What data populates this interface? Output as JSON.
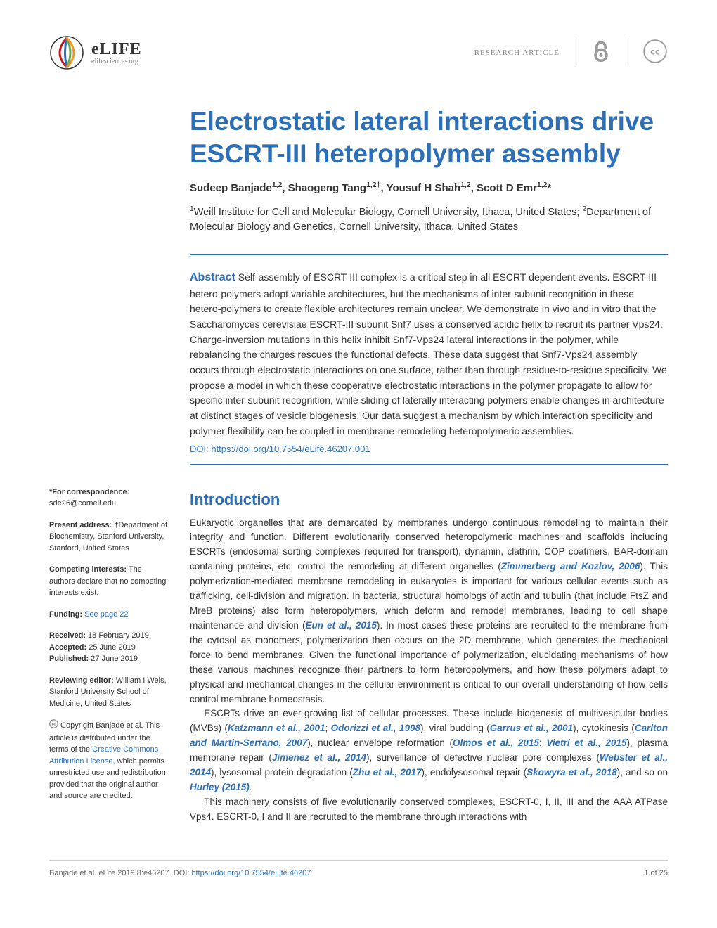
{
  "header": {
    "logo_name": "eLIFE",
    "logo_url": "elifesciences.org",
    "article_type": "RESEARCH ARTICLE"
  },
  "title": "Electrostatic lateral interactions drive ESCRT-III heteropolymer assembly",
  "authors_html": "Sudeep Banjade<sup>1,2</sup>, Shaogeng Tang<sup>1,2†</sup>, Yousuf H Shah<sup>1,2</sup>, Scott D Emr<sup>1,2</sup>*",
  "affiliations_html": "<sup>1</sup>Weill Institute for Cell and Molecular Biology, Cornell University, Ithaca, United States; <sup>2</sup>Department of Molecular Biology and Genetics, Cornell University, Ithaca, United States",
  "abstract": {
    "label": "Abstract",
    "text": " Self-assembly of ESCRT-III complex is a critical step in all ESCRT-dependent events. ESCRT-III hetero-polymers adopt variable architectures, but the mechanisms of inter-subunit recognition in these hetero-polymers to create flexible architectures remain unclear. We demonstrate in vivo and in vitro that the Saccharomyces cerevisiae ESCRT-III subunit Snf7 uses a conserved acidic helix to recruit its partner Vps24. Charge-inversion mutations in this helix inhibit Snf7-Vps24 lateral interactions in the polymer, while rebalancing the charges rescues the functional defects. These data suggest that Snf7-Vps24 assembly occurs through electrostatic interactions on one surface, rather than through residue-to-residue specificity. We propose a model in which these cooperative electrostatic interactions in the polymer propagate to allow for specific inter-subunit recognition, while sliding of laterally interacting polymers enable changes in architecture at distinct stages of vesicle biogenesis. Our data suggest a mechanism by which interaction specificity and polymer flexibility can be coupled in membrane-remodeling heteropolymeric assemblies.",
    "doi": "DOI: https://doi.org/10.7554/eLife.46207.001"
  },
  "sidebar": {
    "correspondence_label": "*For correspondence:",
    "correspondence_email": "sde26@cornell.edu",
    "present_address_label": "Present address:",
    "present_address_text": " †Department of Biochemistry, Stanford University, Stanford, United States",
    "competing_label": "Competing interests:",
    "competing_text": " The authors declare that no competing interests exist.",
    "funding_label": "Funding:",
    "funding_link": " See page 22",
    "received_label": "Received:",
    "received_date": " 18 February 2019",
    "accepted_label": "Accepted:",
    "accepted_date": " 25 June 2019",
    "published_label": "Published:",
    "published_date": " 27 June 2019",
    "reviewing_label": "Reviewing editor:",
    "reviewing_text": " William I Weis, Stanford University School of Medicine, United States",
    "copyright_text": " Copyright Banjade et al. This article is distributed under the terms of the ",
    "license_link": "Creative Commons Attribution License,",
    "copyright_text2": " which permits unrestricted use and redistribution provided that the original author and source are credited."
  },
  "introduction": {
    "heading": "Introduction",
    "para1_html": "Eukaryotic organelles that are demarcated by membranes undergo continuous remodeling to maintain their integrity and function. Different evolutionarily conserved heteropolymeric machines and scaffolds including ESCRTs (endosomal sorting complexes required for transport), dynamin, clathrin, COP coatmers, BAR-domain containing proteins, etc. control the remodeling at different organelles (<span class='ref-link'>Zimmerberg and Kozlov, 2006</span>). This polymerization-mediated membrane remodeling in eukaryotes is important for various cellular events such as trafficking, cell-division and migration. In bacteria, structural homologs of actin and tubulin (that include FtsZ and MreB proteins) also form heteropolymers, which deform and remodel membranes, leading to cell shape maintenance and division (<span class='ref-link'>Eun et al., 2015</span>). In most cases these proteins are recruited to the membrane from the cytosol as monomers, polymerization then occurs on the 2D membrane, which generates the mechanical force to bend membranes. Given the functional importance of polymerization, elucidating mechanisms of how these various machines recognize their partners to form heteropolymers, and how these polymers adapt to physical and mechanical changes in the cellular environment is critical to our overall understanding of how cells control membrane homeostasis.",
    "para2_html": "ESCRTs drive an ever-growing list of cellular processes. These include biogenesis of multivesicular bodies (MVBs) (<span class='ref-link'>Katzmann et al., 2001</span>; <span class='ref-link'>Odorizzi et al., 1998</span>), viral budding (<span class='ref-link'>Garrus et al., 2001</span>), cytokinesis (<span class='ref-link'>Carlton and Martin-Serrano, 2007</span>), nuclear envelope reformation (<span class='ref-link'>Olmos et al., 2015</span>; <span class='ref-link'>Vietri et al., 2015</span>), plasma membrane repair (<span class='ref-link'>Jimenez et al., 2014</span>), surveillance of defective nuclear pore complexes (<span class='ref-link'>Webster et al., 2014</span>), lysosomal protein degradation (<span class='ref-link'>Zhu et al., 2017</span>), endolysosomal repair (<span class='ref-link'>Skowyra et al., 2018</span>), and so on <span class='ref-link'>Hurley (2015)</span>.",
    "para3_html": "This machinery consists of five evolutionarily conserved complexes, ESCRT-0, I, II, III and the AAA ATPase Vps4. ESCRT-0, I and II are recruited to the membrane through interactions with"
  },
  "footer": {
    "citation": "Banjade et al. eLife 2019;8:e46207. ",
    "doi_label": "DOI: ",
    "doi": "https://doi.org/10.7554/eLife.46207",
    "page": "1 of 25"
  },
  "colors": {
    "primary_blue": "#2c6fb7",
    "text": "#333333",
    "muted": "#888888",
    "border": "#cccccc"
  }
}
